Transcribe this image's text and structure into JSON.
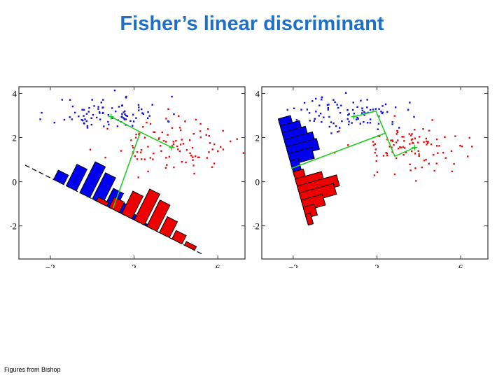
{
  "title": "Fisher’s linear discriminant",
  "credit": "Figures from Bishop",
  "colors": {
    "title": "#1f6fc6",
    "class_blue": "#1010dd",
    "class_red": "#e01010",
    "bar_blue": "#0000ee",
    "bar_red": "#ee0000",
    "connector": "#22cc22"
  },
  "chart_data": [
    {
      "type": "scatter",
      "title": "",
      "xlabel": "",
      "ylabel": "",
      "xlim": [
        -3.5,
        7.3
      ],
      "ylim": [
        -3.5,
        4.3
      ],
      "xticks": [
        -2,
        2,
        6
      ],
      "xtick_labels": [
        "−2",
        "2",
        "6"
      ],
      "yticks": [
        4,
        2,
        0,
        -2
      ],
      "ytick_labels": [
        "4",
        "2",
        "0",
        "−2"
      ],
      "grid": false,
      "classes": [
        {
          "color": "blue",
          "center": [
            0.8,
            3.1
          ],
          "spread": [
            1.3,
            0.38
          ],
          "count": 90,
          "seed": 11
        },
        {
          "color": "red",
          "center": [
            3.7,
            1.6
          ],
          "spread": [
            1.4,
            0.55
          ],
          "count": 100,
          "seed": 23
        }
      ],
      "class_means": [
        [
          0.9,
          2.95
        ],
        [
          3.8,
          1.55
        ]
      ],
      "projection_line": {
        "p1": [
          -3.2,
          0.75
        ],
        "p2": [
          5.3,
          -3.3
        ]
      },
      "connector_path": [
        [
          0.9,
          2.95
        ],
        [
          2.3,
          2.25
        ],
        [
          3.8,
          1.55
        ],
        [
          2.3,
          2.25
        ],
        [
          1.0,
          -1.2
        ]
      ],
      "histograms": [
        {
          "class": "blue",
          "positions": [
            -1.6,
            -1.0,
            -0.35,
            0.25,
            0.85,
            1.45,
            2.05,
            2.65
          ],
          "heights": [
            0.5,
            1.15,
            1.65,
            1.4,
            0.9,
            0.5,
            0.25,
            0.1
          ]
        },
        {
          "class": "red",
          "positions": [
            0.45,
            1.05,
            1.65,
            2.25,
            2.85,
            3.45,
            4.05,
            4.65
          ],
          "heights": [
            0.2,
            0.55,
            1.2,
            1.65,
            1.4,
            0.85,
            0.45,
            0.2
          ]
        }
      ]
    },
    {
      "type": "scatter",
      "title": "",
      "xlabel": "",
      "ylabel": "",
      "xlim": [
        -3.5,
        7.3
      ],
      "ylim": [
        -3.5,
        4.3
      ],
      "xticks": [
        -2,
        2,
        6
      ],
      "xtick_labels": [
        "−2",
        "2",
        "6"
      ],
      "yticks": [
        4,
        2,
        0,
        -2
      ],
      "ytick_labels": [
        "4",
        "2",
        "0",
        "−2"
      ],
      "grid": false,
      "classes": [
        {
          "color": "blue",
          "center": [
            0.8,
            3.1
          ],
          "spread": [
            1.3,
            0.38
          ],
          "count": 90,
          "seed": 37
        },
        {
          "color": "red",
          "center": [
            3.7,
            1.6
          ],
          "spread": [
            1.4,
            0.55
          ],
          "count": 100,
          "seed": 53
        }
      ],
      "class_means": [
        [
          0.9,
          2.95
        ],
        [
          3.8,
          1.55
        ]
      ],
      "projection_line": {
        "p1": [
          -2.7,
          2.8
        ],
        "p2": [
          -1.3,
          -1.9
        ]
      },
      "connector_path": [
        [
          0.9,
          2.95
        ],
        [
          1.95,
          3.2
        ],
        [
          2.4,
          2.2
        ],
        [
          2.85,
          1.15
        ],
        [
          3.8,
          1.55
        ],
        [
          2.85,
          1.15
        ],
        [
          2.4,
          2.2
        ],
        [
          -2.1,
          0.6
        ]
      ],
      "histograms": [
        {
          "class": "blue",
          "positions": [
            2.6,
            2.28,
            1.97,
            1.65,
            1.33,
            1.01,
            0.7
          ],
          "heights": [
            0.6,
            0.95,
            1.15,
            1.4,
            1.5,
            1.15,
            0.4
          ]
        },
        {
          "class": "red",
          "positions": [
            0.2,
            -0.12,
            -0.44,
            -0.76,
            -1.08,
            -1.4,
            -1.72
          ],
          "heights": [
            0.5,
            1.3,
            1.95,
            1.7,
            1.05,
            0.55,
            0.25
          ]
        }
      ]
    }
  ]
}
